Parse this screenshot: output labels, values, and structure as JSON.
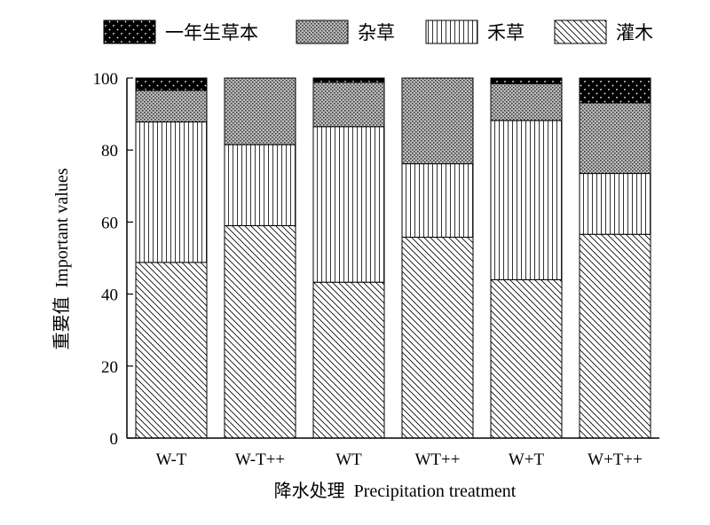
{
  "chart_data": {
    "type": "bar",
    "stacked": true,
    "categories": [
      "W-T",
      "W-T++",
      "WT",
      "WT++",
      "W+T",
      "W+T++"
    ],
    "series": [
      {
        "name": "灌木",
        "pattern": "diagonal-hatch",
        "values": [
          48.8,
          59.0,
          43.3,
          55.8,
          44.0,
          56.6
        ]
      },
      {
        "name": "禾草",
        "pattern": "vertical-lines",
        "values": [
          39.0,
          22.5,
          43.2,
          20.4,
          44.2,
          16.9
        ]
      },
      {
        "name": "杂草",
        "pattern": "gray-dots",
        "values": [
          8.8,
          18.5,
          12.3,
          23.8,
          10.2,
          19.6
        ]
      },
      {
        "name": "一年生草本",
        "pattern": "black-dots",
        "values": [
          3.4,
          0.0,
          1.2,
          0.0,
          1.6,
          6.9
        ]
      }
    ],
    "legend_order": [
      "一年生草本",
      "杂草",
      "禾草",
      "灌木"
    ],
    "xlabel": "降水处理  Precipitation treatment",
    "ylabel": "重要值  Important values",
    "ylim": [
      0,
      100
    ],
    "yticks": [
      0,
      20,
      40,
      60,
      80,
      100
    ],
    "legend_position": "top",
    "grid": false
  }
}
